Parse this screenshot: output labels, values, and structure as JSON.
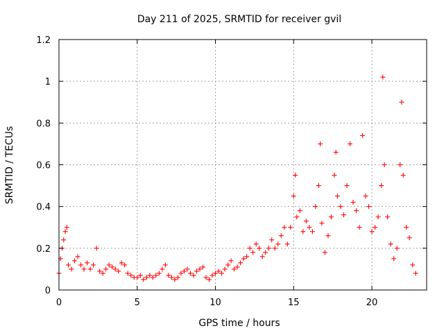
{
  "chart_data": {
    "type": "scatter",
    "title": "Day 211 of 2025, SRMTID for receiver gvil",
    "xlabel": "GPS time / hours",
    "ylabel": "SRMTID / TECUs",
    "xlim": [
      0,
      23.5
    ],
    "ylim": [
      0,
      1.2
    ],
    "xticks": [
      0,
      5,
      10,
      15,
      20
    ],
    "xtick_labels": [
      "0",
      "5",
      "10",
      "15",
      "20"
    ],
    "yticks": [
      0,
      0.2,
      0.4,
      0.6,
      0.8,
      1.0,
      1.2
    ],
    "ytick_labels": [
      "0",
      "0.2",
      "0.4",
      "0.6",
      "0.8",
      "1",
      "1.2"
    ],
    "grid": true,
    "marker": "+",
    "color": "#ff0000",
    "series": [
      {
        "name": "SRMTID",
        "x": [
          0.0,
          0.1,
          0.2,
          0.3,
          0.4,
          0.5,
          0.6,
          0.8,
          1.0,
          1.2,
          1.4,
          1.6,
          1.8,
          2.0,
          2.2,
          2.4,
          2.6,
          2.8,
          3.0,
          3.2,
          3.4,
          3.6,
          3.8,
          4.0,
          4.2,
          4.4,
          4.6,
          4.8,
          5.0,
          5.2,
          5.4,
          5.6,
          5.8,
          6.0,
          6.2,
          6.4,
          6.6,
          6.8,
          7.0,
          7.2,
          7.4,
          7.6,
          7.8,
          8.0,
          8.2,
          8.4,
          8.6,
          8.8,
          9.0,
          9.2,
          9.4,
          9.6,
          9.8,
          10.0,
          10.2,
          10.4,
          10.6,
          10.8,
          11.0,
          11.2,
          11.4,
          11.6,
          11.8,
          12.0,
          12.2,
          12.4,
          12.6,
          12.8,
          13.0,
          13.2,
          13.4,
          13.6,
          13.8,
          14.0,
          14.2,
          14.4,
          14.6,
          14.8,
          15.0,
          15.1,
          15.2,
          15.4,
          15.6,
          15.8,
          16.0,
          16.2,
          16.4,
          16.6,
          16.7,
          16.8,
          17.0,
          17.2,
          17.4,
          17.6,
          17.7,
          17.8,
          18.0,
          18.2,
          18.4,
          18.6,
          18.8,
          19.0,
          19.2,
          19.4,
          19.6,
          19.8,
          20.0,
          20.2,
          20.4,
          20.6,
          20.7,
          20.8,
          21.0,
          21.2,
          21.4,
          21.6,
          21.8,
          21.9,
          22.0,
          22.2,
          22.4,
          22.6,
          22.8
        ],
        "y": [
          0.08,
          0.15,
          0.2,
          0.24,
          0.28,
          0.3,
          0.12,
          0.1,
          0.14,
          0.16,
          0.12,
          0.1,
          0.13,
          0.1,
          0.12,
          0.2,
          0.09,
          0.08,
          0.1,
          0.12,
          0.11,
          0.1,
          0.09,
          0.13,
          0.12,
          0.08,
          0.07,
          0.06,
          0.06,
          0.07,
          0.05,
          0.06,
          0.07,
          0.06,
          0.07,
          0.08,
          0.1,
          0.12,
          0.07,
          0.06,
          0.05,
          0.06,
          0.08,
          0.09,
          0.1,
          0.08,
          0.07,
          0.09,
          0.1,
          0.11,
          0.06,
          0.05,
          0.07,
          0.08,
          0.09,
          0.08,
          0.1,
          0.12,
          0.14,
          0.1,
          0.11,
          0.13,
          0.15,
          0.16,
          0.2,
          0.18,
          0.22,
          0.2,
          0.16,
          0.18,
          0.2,
          0.24,
          0.2,
          0.22,
          0.26,
          0.3,
          0.22,
          0.3,
          0.45,
          0.55,
          0.35,
          0.38,
          0.28,
          0.33,
          0.3,
          0.28,
          0.4,
          0.5,
          0.7,
          0.32,
          0.18,
          0.26,
          0.35,
          0.55,
          0.66,
          0.45,
          0.4,
          0.36,
          0.5,
          0.7,
          0.42,
          0.38,
          0.3,
          0.74,
          0.45,
          0.4,
          0.28,
          0.3,
          0.35,
          0.5,
          1.02,
          0.6,
          0.35,
          0.22,
          0.15,
          0.2,
          0.6,
          0.9,
          0.55,
          0.3,
          0.25,
          0.12,
          0.08
        ]
      }
    ]
  }
}
